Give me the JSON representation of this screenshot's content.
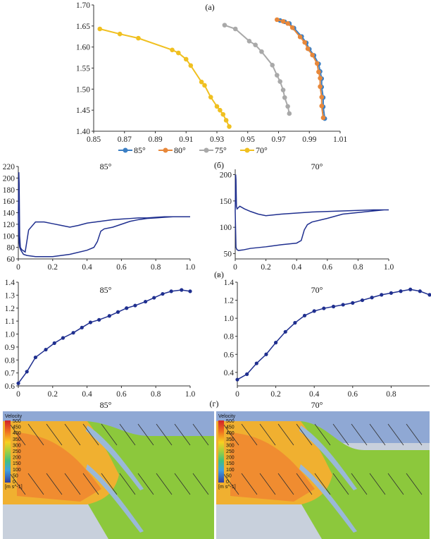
{
  "panels": {
    "a": "(a)",
    "b": "(б)",
    "c": "(в)",
    "d": "(г)"
  },
  "chart_data": [
    {
      "id": "a",
      "type": "scatter",
      "xlim": [
        0.85,
        1.01
      ],
      "ylim": [
        1.4,
        1.7
      ],
      "xticks": [
        "0.85",
        "0.87",
        "0.89",
        "0.91",
        "0.93",
        "0.95",
        "0.97",
        "0.99",
        "1.01"
      ],
      "yticks": [
        "1.40",
        "1.45",
        "1.50",
        "1.55",
        "1.60",
        "1.65",
        "1.70"
      ],
      "legend_position": "bottom",
      "series": [
        {
          "name": "85°",
          "color": "#3b7fc4",
          "x": [
            0.971,
            0.974,
            0.977,
            0.98,
            0.985,
            0.988,
            0.99,
            0.993,
            0.996,
            0.997,
            0.998,
            0.998,
            0.999,
            0.999,
            1.0
          ],
          "y": [
            1.663,
            1.66,
            1.656,
            1.645,
            1.625,
            1.61,
            1.595,
            1.58,
            1.56,
            1.542,
            1.525,
            1.505,
            1.48,
            1.458,
            1.43
          ]
        },
        {
          "name": "80°",
          "color": "#e8883a",
          "x": [
            0.969,
            0.973,
            0.976,
            0.979,
            0.984,
            0.987,
            0.989,
            0.992,
            0.995,
            0.996,
            0.997,
            0.997,
            0.998,
            0.998,
            0.999
          ],
          "y": [
            1.665,
            1.661,
            1.656,
            1.646,
            1.624,
            1.611,
            1.596,
            1.581,
            1.561,
            1.541,
            1.526,
            1.506,
            1.481,
            1.46,
            1.432
          ]
        },
        {
          "name": "75°",
          "color": "#a9a9a9",
          "x": [
            0.935,
            0.942,
            0.951,
            0.955,
            0.959,
            0.966,
            0.969,
            0.971,
            0.973,
            0.974,
            0.976,
            0.977
          ],
          "y": [
            1.652,
            1.643,
            1.614,
            1.605,
            1.589,
            1.557,
            1.533,
            1.518,
            1.498,
            1.48,
            1.459,
            1.442
          ]
        },
        {
          "name": "70°",
          "color": "#f0c020",
          "x": [
            0.854,
            0.867,
            0.879,
            0.901,
            0.905,
            0.91,
            0.913,
            0.92,
            0.922,
            0.926,
            0.93,
            0.932,
            0.934,
            0.936,
            0.938
          ],
          "y": [
            1.643,
            1.631,
            1.621,
            1.593,
            1.586,
            1.571,
            1.556,
            1.517,
            1.509,
            1.481,
            1.459,
            1.45,
            1.44,
            1.426,
            1.411
          ]
        }
      ]
    },
    {
      "id": "b1",
      "type": "line",
      "title": "85°",
      "xlim": [
        0,
        1
      ],
      "ylim": [
        60,
        220
      ],
      "xticks": [
        "0",
        "0.2",
        "0.4",
        "0.6",
        "0.8",
        "1.0"
      ],
      "yticks": [
        "60",
        "80",
        "100",
        "120",
        "140",
        "160",
        "180",
        "200",
        "220"
      ],
      "color": "#1f2f8f",
      "x": [
        0.0,
        0.003,
        0.005,
        0.008,
        0.012,
        0.02,
        0.04,
        0.06,
        0.1,
        0.15,
        0.2,
        0.25,
        0.3,
        0.35,
        0.4,
        0.45,
        0.5,
        0.55,
        0.6,
        0.65,
        0.7,
        0.75,
        0.8,
        0.85,
        0.9,
        0.95,
        1.0,
        0.98,
        0.9,
        0.85,
        0.8,
        0.75,
        0.7,
        0.65,
        0.6,
        0.55,
        0.5,
        0.48,
        0.46,
        0.44,
        0.4,
        0.3,
        0.2,
        0.1,
        0.05,
        0.03,
        0.015,
        0.008,
        0.005,
        0.003,
        0.0
      ],
      "y": [
        130,
        210,
        190,
        100,
        80,
        76,
        72,
        110,
        124,
        124,
        121,
        118,
        115,
        118,
        122,
        124,
        126,
        128,
        129,
        130,
        131,
        131,
        132,
        133,
        133,
        133,
        133,
        133,
        133,
        132,
        131,
        130,
        128,
        125,
        120,
        115,
        112,
        108,
        90,
        80,
        75,
        68,
        64,
        64,
        66,
        68,
        75,
        80,
        88,
        100,
        130
      ]
    },
    {
      "id": "b2",
      "type": "line",
      "title": "70°",
      "xlim": [
        0,
        1
      ],
      "ylim": [
        40,
        210
      ],
      "xticks": [
        "0",
        "0.2",
        "0.4",
        "0.6",
        "0.8",
        "1.0"
      ],
      "yticks": [
        "50",
        "100",
        "150",
        "200"
      ],
      "color": "#1f2f8f",
      "x": [
        0.0,
        0.003,
        0.005,
        0.008,
        0.012,
        0.03,
        0.06,
        0.1,
        0.15,
        0.2,
        0.3,
        0.4,
        0.5,
        0.6,
        0.7,
        0.8,
        0.9,
        1.0,
        0.97,
        0.9,
        0.8,
        0.7,
        0.6,
        0.5,
        0.47,
        0.45,
        0.43,
        0.4,
        0.3,
        0.2,
        0.1,
        0.05,
        0.02,
        0.01,
        0.005,
        0.0
      ],
      "y": [
        130,
        200,
        190,
        140,
        135,
        140,
        135,
        130,
        125,
        122,
        125,
        127,
        129,
        130,
        131,
        132,
        133,
        133,
        133,
        131,
        128,
        125,
        117,
        110,
        105,
        95,
        75,
        70,
        67,
        63,
        60,
        57,
        56,
        58,
        62,
        130
      ]
    },
    {
      "id": "c1",
      "type": "line",
      "title": "85°",
      "xlim": [
        0,
        1.0
      ],
      "ylim": [
        0.6,
        1.4
      ],
      "xticks": [
        "0",
        "0.2",
        "0.4",
        "0.6",
        "0.8",
        "1.0"
      ],
      "yticks": [
        "0.6",
        "0.7",
        "0.8",
        "0.9",
        "1.0",
        "1.1",
        "1.2",
        "1.3",
        "1.4"
      ],
      "color": "#1f2f8f",
      "x": [
        0,
        0.05,
        0.1,
        0.16,
        0.21,
        0.26,
        0.32,
        0.37,
        0.42,
        0.47,
        0.53,
        0.58,
        0.63,
        0.68,
        0.74,
        0.79,
        0.84,
        0.89,
        0.95,
        1.0
      ],
      "y": [
        0.62,
        0.71,
        0.82,
        0.88,
        0.93,
        0.97,
        1.01,
        1.05,
        1.09,
        1.11,
        1.14,
        1.17,
        1.2,
        1.22,
        1.25,
        1.28,
        1.31,
        1.33,
        1.34,
        1.33
      ]
    },
    {
      "id": "c2",
      "type": "line",
      "title": "70°",
      "xlim": [
        0,
        1.0
      ],
      "ylim": [
        0.25,
        1.4
      ],
      "xticks": [
        "0",
        "0.2",
        "0.4",
        "0.6",
        "0.8"
      ],
      "yticks": [
        "0.4",
        "0.6",
        "0.8",
        "1.0",
        "1.2",
        "1.4"
      ],
      "color": "#1f2f8f",
      "x": [
        0,
        0.05,
        0.1,
        0.15,
        0.2,
        0.25,
        0.3,
        0.35,
        0.4,
        0.45,
        0.5,
        0.55,
        0.6,
        0.65,
        0.7,
        0.75,
        0.8,
        0.85,
        0.9,
        0.95,
        1.0
      ],
      "y": [
        0.32,
        0.38,
        0.5,
        0.6,
        0.73,
        0.85,
        0.95,
        1.03,
        1.08,
        1.11,
        1.13,
        1.15,
        1.17,
        1.2,
        1.23,
        1.26,
        1.28,
        1.3,
        1.32,
        1.3,
        1.26
      ]
    }
  ],
  "cfd": [
    {
      "title": "85°",
      "legend_title": "Velocity",
      "units": "[m s^-1]",
      "legend_values": [
        "500",
        "450",
        "400",
        "350",
        "300",
        "250",
        "200",
        "150",
        "100",
        "50",
        "0"
      ]
    },
    {
      "title": "70°",
      "legend_title": "Velocity",
      "units": "[m s^-1]",
      "legend_values": [
        "500",
        "450",
        "400",
        "350",
        "300",
        "250",
        "200",
        "150",
        "100",
        "50",
        "0"
      ]
    }
  ]
}
